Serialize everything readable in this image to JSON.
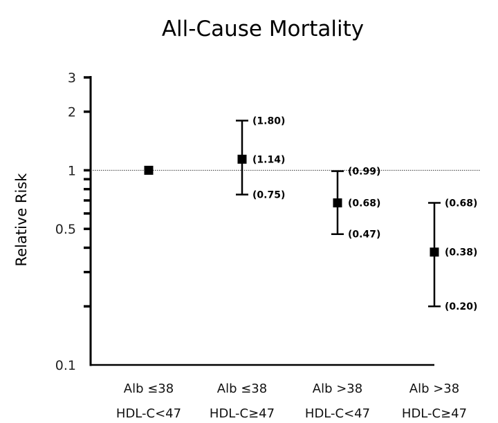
{
  "chart_data": {
    "type": "scatter",
    "subtype": "point-with-error-bars",
    "title": "All-Cause Mortality",
    "xlabel": "",
    "ylabel": "Relative Risk",
    "yscale": "log",
    "ylim": [
      0.1,
      3
    ],
    "yticks": [
      {
        "value": 3,
        "label": "3"
      },
      {
        "value": 2,
        "label": "2"
      },
      {
        "value": 1,
        "label": "1"
      },
      {
        "value": 0.9,
        "label": ""
      },
      {
        "value": 0.8,
        "label": ""
      },
      {
        "value": 0.7,
        "label": ""
      },
      {
        "value": 0.6,
        "label": ""
      },
      {
        "value": 0.5,
        "label": "0.5"
      },
      {
        "value": 0.4,
        "label": ""
      },
      {
        "value": 0.3,
        "label": ""
      },
      {
        "value": 0.2,
        "label": ""
      },
      {
        "value": 0.1,
        "label": "0.1"
      }
    ],
    "reference_line": {
      "value": 1,
      "style": "dotted"
    },
    "grid": false,
    "categories": [
      {
        "line1": "Alb ≤38",
        "line2": "HDL-C<47"
      },
      {
        "line1": "Alb ≤38",
        "line2": "HDL-C≥47"
      },
      {
        "line1": "Alb >38",
        "line2": "HDL-C<47"
      },
      {
        "line1": "Alb >38",
        "line2": "HDL-C≥47"
      }
    ],
    "points": [
      {
        "estimate": 1.0,
        "lower": null,
        "upper": null,
        "estimate_label": "",
        "lower_label": "",
        "upper_label": ""
      },
      {
        "estimate": 1.14,
        "lower": 0.75,
        "upper": 1.8,
        "estimate_label": "(1.14)",
        "lower_label": "(0.75)",
        "upper_label": "(1.80)"
      },
      {
        "estimate": 0.68,
        "lower": 0.47,
        "upper": 0.99,
        "estimate_label": "(0.68)",
        "lower_label": "(0.47)",
        "upper_label": "(0.99)"
      },
      {
        "estimate": 0.38,
        "lower": 0.2,
        "upper": 0.68,
        "estimate_label": "(0.38)",
        "lower_label": "(0.20)",
        "upper_label": "(0.68)"
      }
    ]
  }
}
